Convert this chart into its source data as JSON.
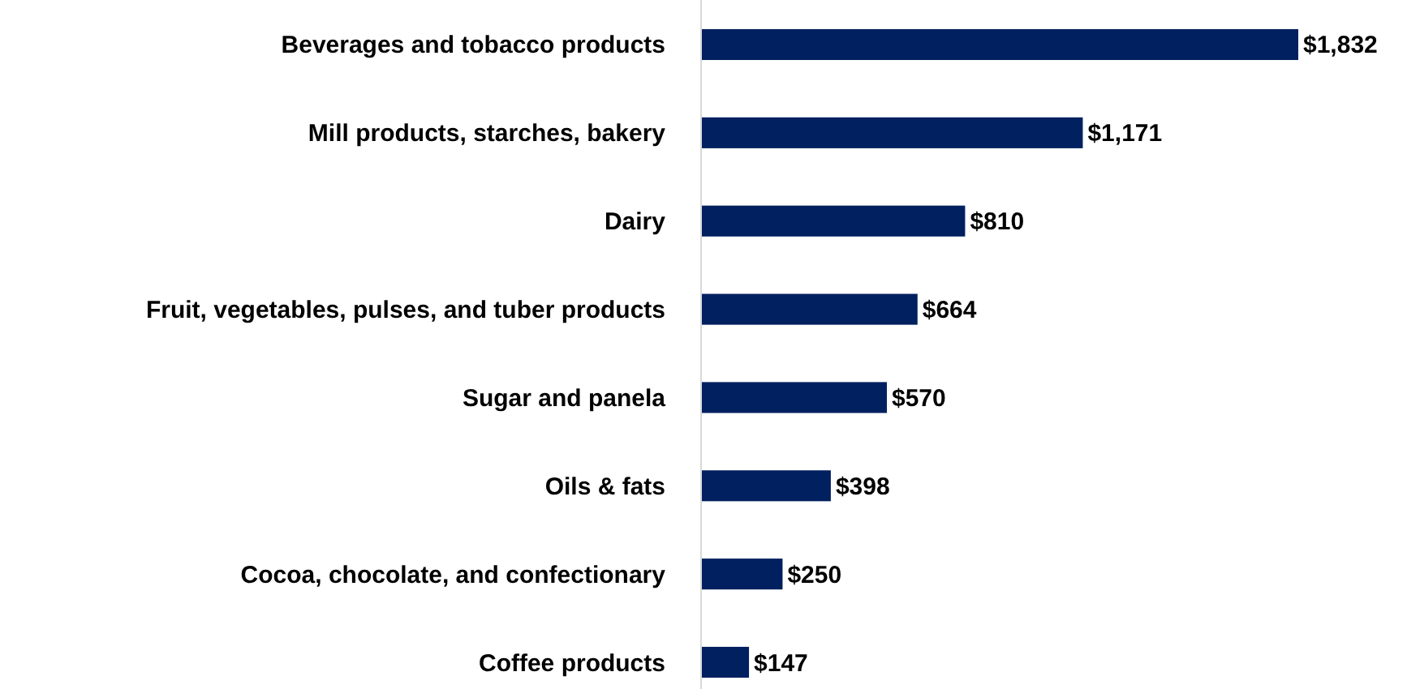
{
  "chart_data": {
    "type": "bar",
    "orientation": "horizontal",
    "categories": [
      "Beverages and tobacco products",
      "Mill products, starches, bakery",
      "Dairy",
      "Fruit, vegetables, pulses, and tuber products",
      "Sugar and panela",
      "Oils & fats",
      "Cocoa, chocolate, and confectionary",
      "Coffee products"
    ],
    "values": [
      1832,
      1171,
      810,
      664,
      570,
      398,
      250,
      147
    ],
    "value_labels": [
      "$1,832",
      "$1,171",
      "$810",
      "$664",
      "$570",
      "$398",
      "$250",
      "$147"
    ],
    "color": "#002060"
  }
}
